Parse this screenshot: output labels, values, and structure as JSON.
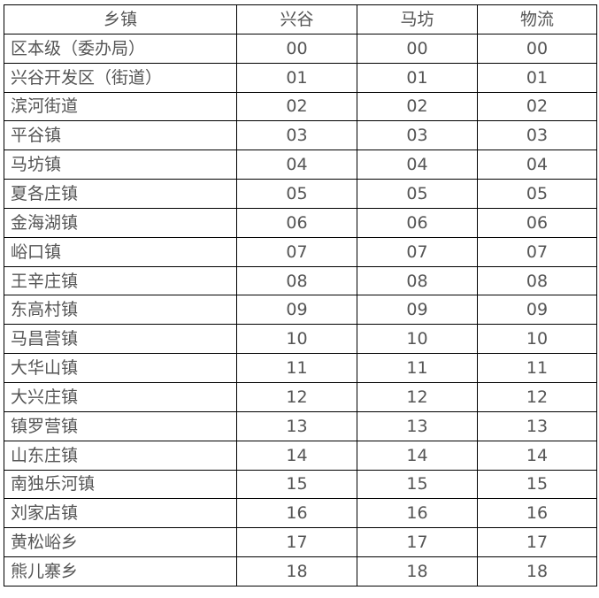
{
  "headers": [
    "乡镇",
    "兴谷",
    "马坊",
    "物流"
  ],
  "rows": [
    [
      "区本级（委办局）",
      "00",
      "00",
      "00"
    ],
    [
      "兴谷开发区（街道）",
      "01",
      "01",
      "01"
    ],
    [
      "滨河街道",
      "02",
      "02",
      "02"
    ],
    [
      "平谷镇",
      "03",
      "03",
      "03"
    ],
    [
      "马坊镇",
      "04",
      "04",
      "04"
    ],
    [
      "夏各庄镇",
      "05",
      "05",
      "05"
    ],
    [
      "金海湖镇",
      "06",
      "06",
      "06"
    ],
    [
      "峪口镇",
      "07",
      "07",
      "07"
    ],
    [
      "王辛庄镇",
      "08",
      "08",
      "08"
    ],
    [
      "东高村镇",
      "09",
      "09",
      "09"
    ],
    [
      "马昌营镇",
      "10",
      "10",
      "10"
    ],
    [
      "大华山镇",
      "11",
      "11",
      "11"
    ],
    [
      "大兴庄镇",
      "12",
      "12",
      "12"
    ],
    [
      "镇罗营镇",
      "13",
      "13",
      "13"
    ],
    [
      "山东庄镇",
      "14",
      "14",
      "14"
    ],
    [
      "南独乐河镇",
      "15",
      "15",
      "15"
    ],
    [
      "刘家店镇",
      "16",
      "16",
      "16"
    ],
    [
      "黄松峪乡",
      "17",
      "17",
      "17"
    ],
    [
      "熊儿寨乡",
      "18",
      "18",
      "18"
    ]
  ]
}
